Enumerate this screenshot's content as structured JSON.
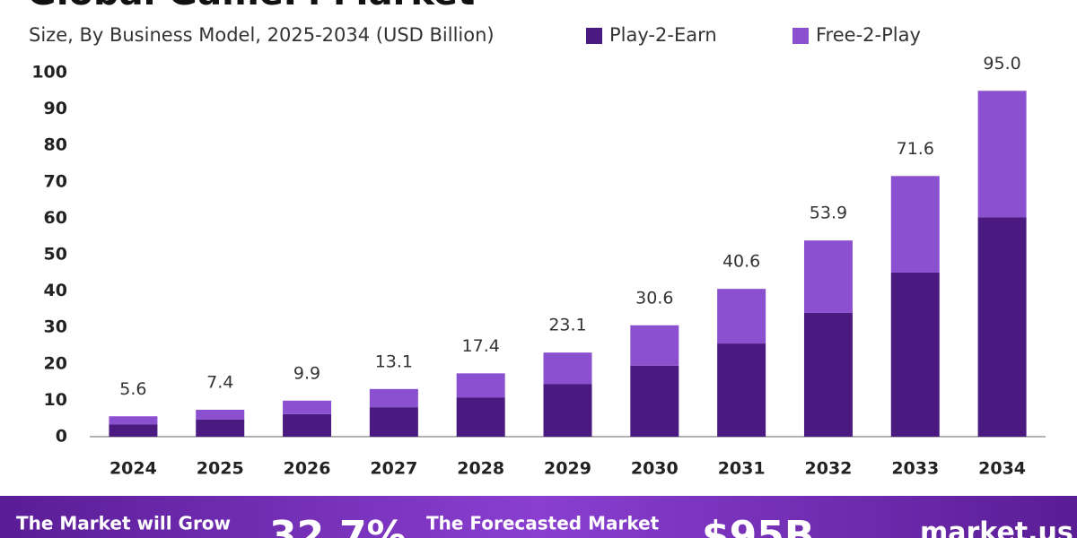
{
  "chart_data": {
    "type": "stacked-bar",
    "title": "Global GameFi Market",
    "subtitle": "Size, By Business Model, 2025-2034 (USD Billion)",
    "categories": [
      "2024",
      "2025",
      "2026",
      "2027",
      "2028",
      "2029",
      "2030",
      "2031",
      "2032",
      "2033",
      "2034"
    ],
    "series": [
      {
        "name": "Play-2-Earn",
        "color": "#4b1a80",
        "values": [
          3.4,
          4.7,
          6.2,
          8.1,
          10.8,
          14.5,
          19.5,
          25.6,
          34.0,
          45.1,
          60.3
        ]
      },
      {
        "name": "Free-2-Play",
        "color": "#8b50cf",
        "values": [
          2.2,
          2.7,
          3.7,
          5.0,
          6.6,
          8.6,
          11.1,
          15.0,
          19.9,
          26.5,
          34.7
        ]
      }
    ],
    "totals": [
      5.6,
      7.4,
      9.9,
      13.1,
      17.4,
      23.1,
      30.6,
      40.6,
      53.9,
      71.6,
      95.0
    ],
    "total_labels": [
      "5.6",
      "7.4",
      "9.9",
      "13.1",
      "17.4",
      "23.1",
      "30.6",
      "40.6",
      "53.9",
      "71.6",
      "95.0"
    ],
    "ylim": [
      0,
      100
    ],
    "yticks": [
      0,
      10,
      20,
      30,
      40,
      50,
      60,
      70,
      80,
      90,
      100
    ],
    "grid": false
  },
  "banner": {
    "grow_text": "The Market will Grow",
    "cagr": "32.7%",
    "forecast_text": "The Forecasted Market",
    "forecast_value": "$95B",
    "brand": "market.us"
  }
}
